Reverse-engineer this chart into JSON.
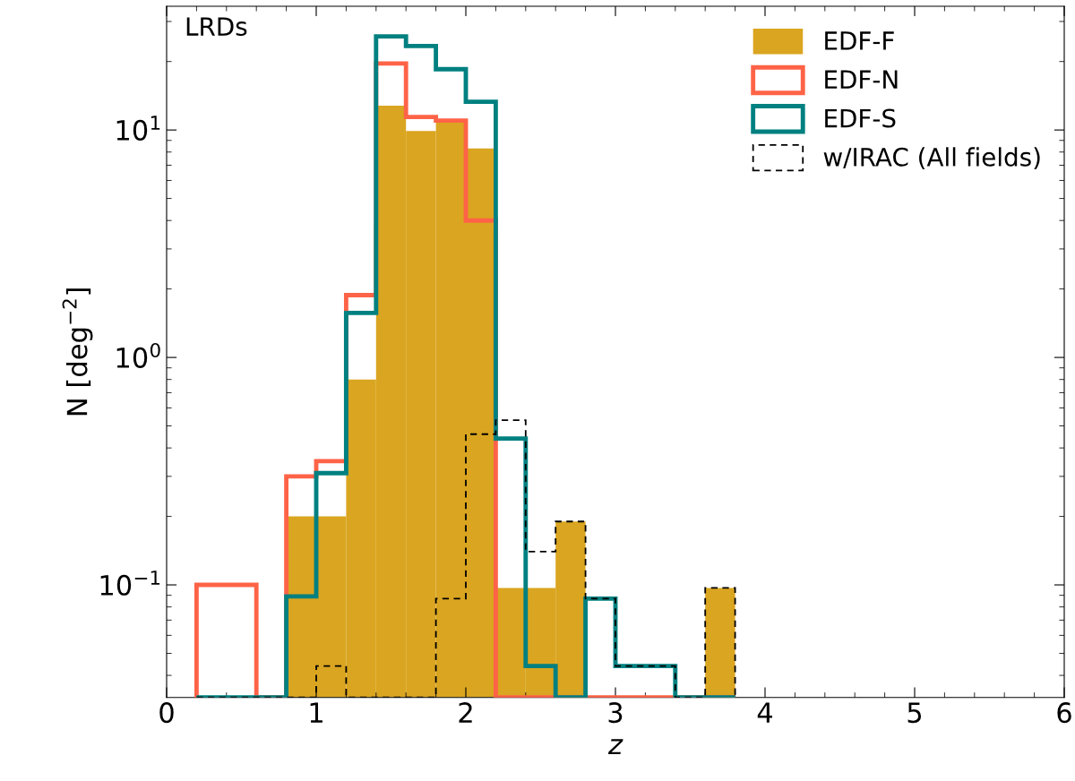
{
  "chart_data": {
    "type": "histogram",
    "annotations": [
      "LRDs"
    ],
    "xlabel": "z",
    "ylabel": "N [deg$^{−2}$]",
    "bins": [
      0.2,
      0.4,
      0.6,
      0.8,
      1.0,
      1.2,
      1.4,
      1.6,
      1.8,
      2.0,
      2.2,
      2.4,
      2.6,
      2.8,
      3.0,
      3.2,
      3.4,
      3.6,
      3.8
    ],
    "series": [
      {
        "name": "EDF-F",
        "color": "#daa520",
        "values": [
          null,
          null,
          null,
          0.2,
          0.2,
          0.8,
          12.8,
          9.9,
          11,
          8.3,
          0.097,
          0.097,
          0.19,
          null,
          null,
          null,
          null,
          0.097
        ]
      },
      {
        "name": "EDF-N",
        "type": "histogram",
        "color": "#ff6347",
        "line_style": "solid",
        "values": [
          0.1,
          0.1,
          null,
          0.3,
          0.35,
          1.88,
          19.6,
          11.4,
          11,
          4,
          null,
          null,
          null,
          null,
          null,
          null,
          null,
          null
        ]
      },
      {
        "name": "EDF-S",
        "type": "histogram",
        "color": "#008080",
        "line_style": "solid",
        "values": [
          null,
          null,
          null,
          0.089,
          0.31,
          1.57,
          25.8,
          23.4,
          18.5,
          13.3,
          0.44,
          0.044,
          null,
          0.087,
          0.044,
          0.044,
          null,
          null
        ]
      },
      {
        "name": "w/IRAC (All fields)",
        "type": "histogram",
        "color": "#000000",
        "line_style": "dashed",
        "values": [
          null,
          null,
          null,
          null,
          0.044,
          null,
          null,
          null,
          0.087,
          0.46,
          0.53,
          0.14,
          0.19,
          0.087,
          0.044,
          0.044,
          null,
          0.097
        ]
      }
    ],
    "log": "y",
    "xlim": [
      0,
      6
    ],
    "xticks": [
      0,
      1,
      2,
      3,
      4,
      5,
      6
    ],
    "ylim": [
      0.032,
      35
    ],
    "yticks": [
      {
        "value": 0.1,
        "label": "10$^{−1}$"
      },
      {
        "value": 1,
        "label": "10$^{0}$"
      },
      {
        "value": 10,
        "label": "10$^{1}$"
      }
    ],
    "grid": false,
    "legend": "top right"
  }
}
